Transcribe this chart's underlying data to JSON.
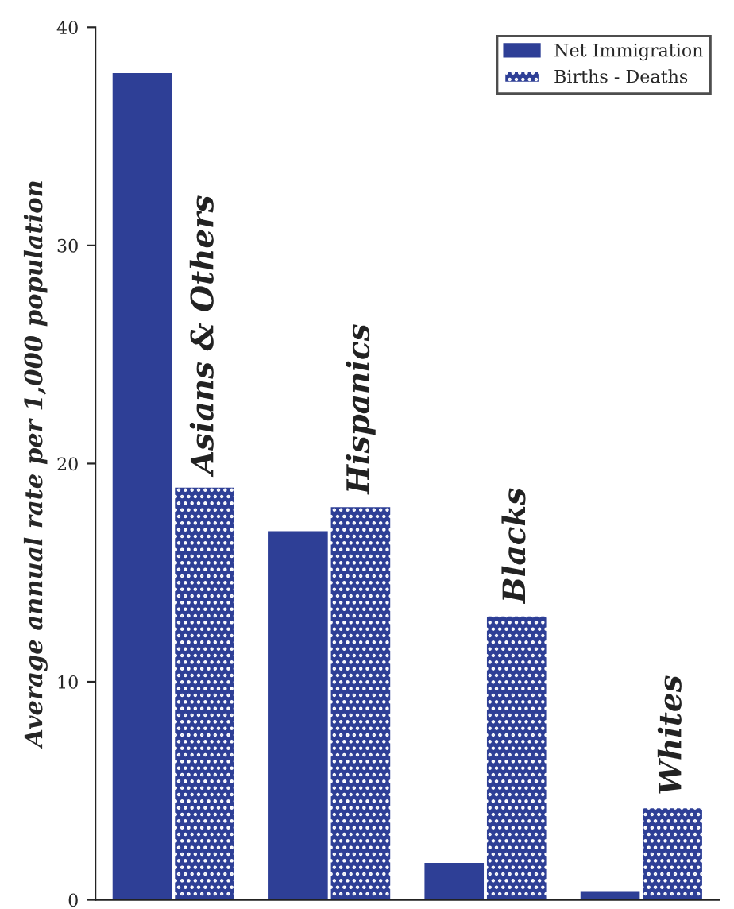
{
  "chart_data": {
    "type": "bar",
    "ylabel": "Average annual rate per 1,000 population",
    "categories": [
      "Asians & Others",
      "Hispanics",
      "Blacks",
      "Whites"
    ],
    "series": [
      {
        "name": "Net Immigration",
        "color": "#2e3f96",
        "values": [
          37.9,
          16.9,
          1.7,
          0.4
        ]
      },
      {
        "name": "Births - Deaths",
        "color": "#2e3f96",
        "values": [
          18.9,
          18.0,
          13.0,
          4.2
        ]
      }
    ],
    "ylim": [
      0,
      40
    ],
    "yticks": [
      0,
      10,
      20,
      30,
      40
    ],
    "grid": false,
    "legend": "top right"
  }
}
